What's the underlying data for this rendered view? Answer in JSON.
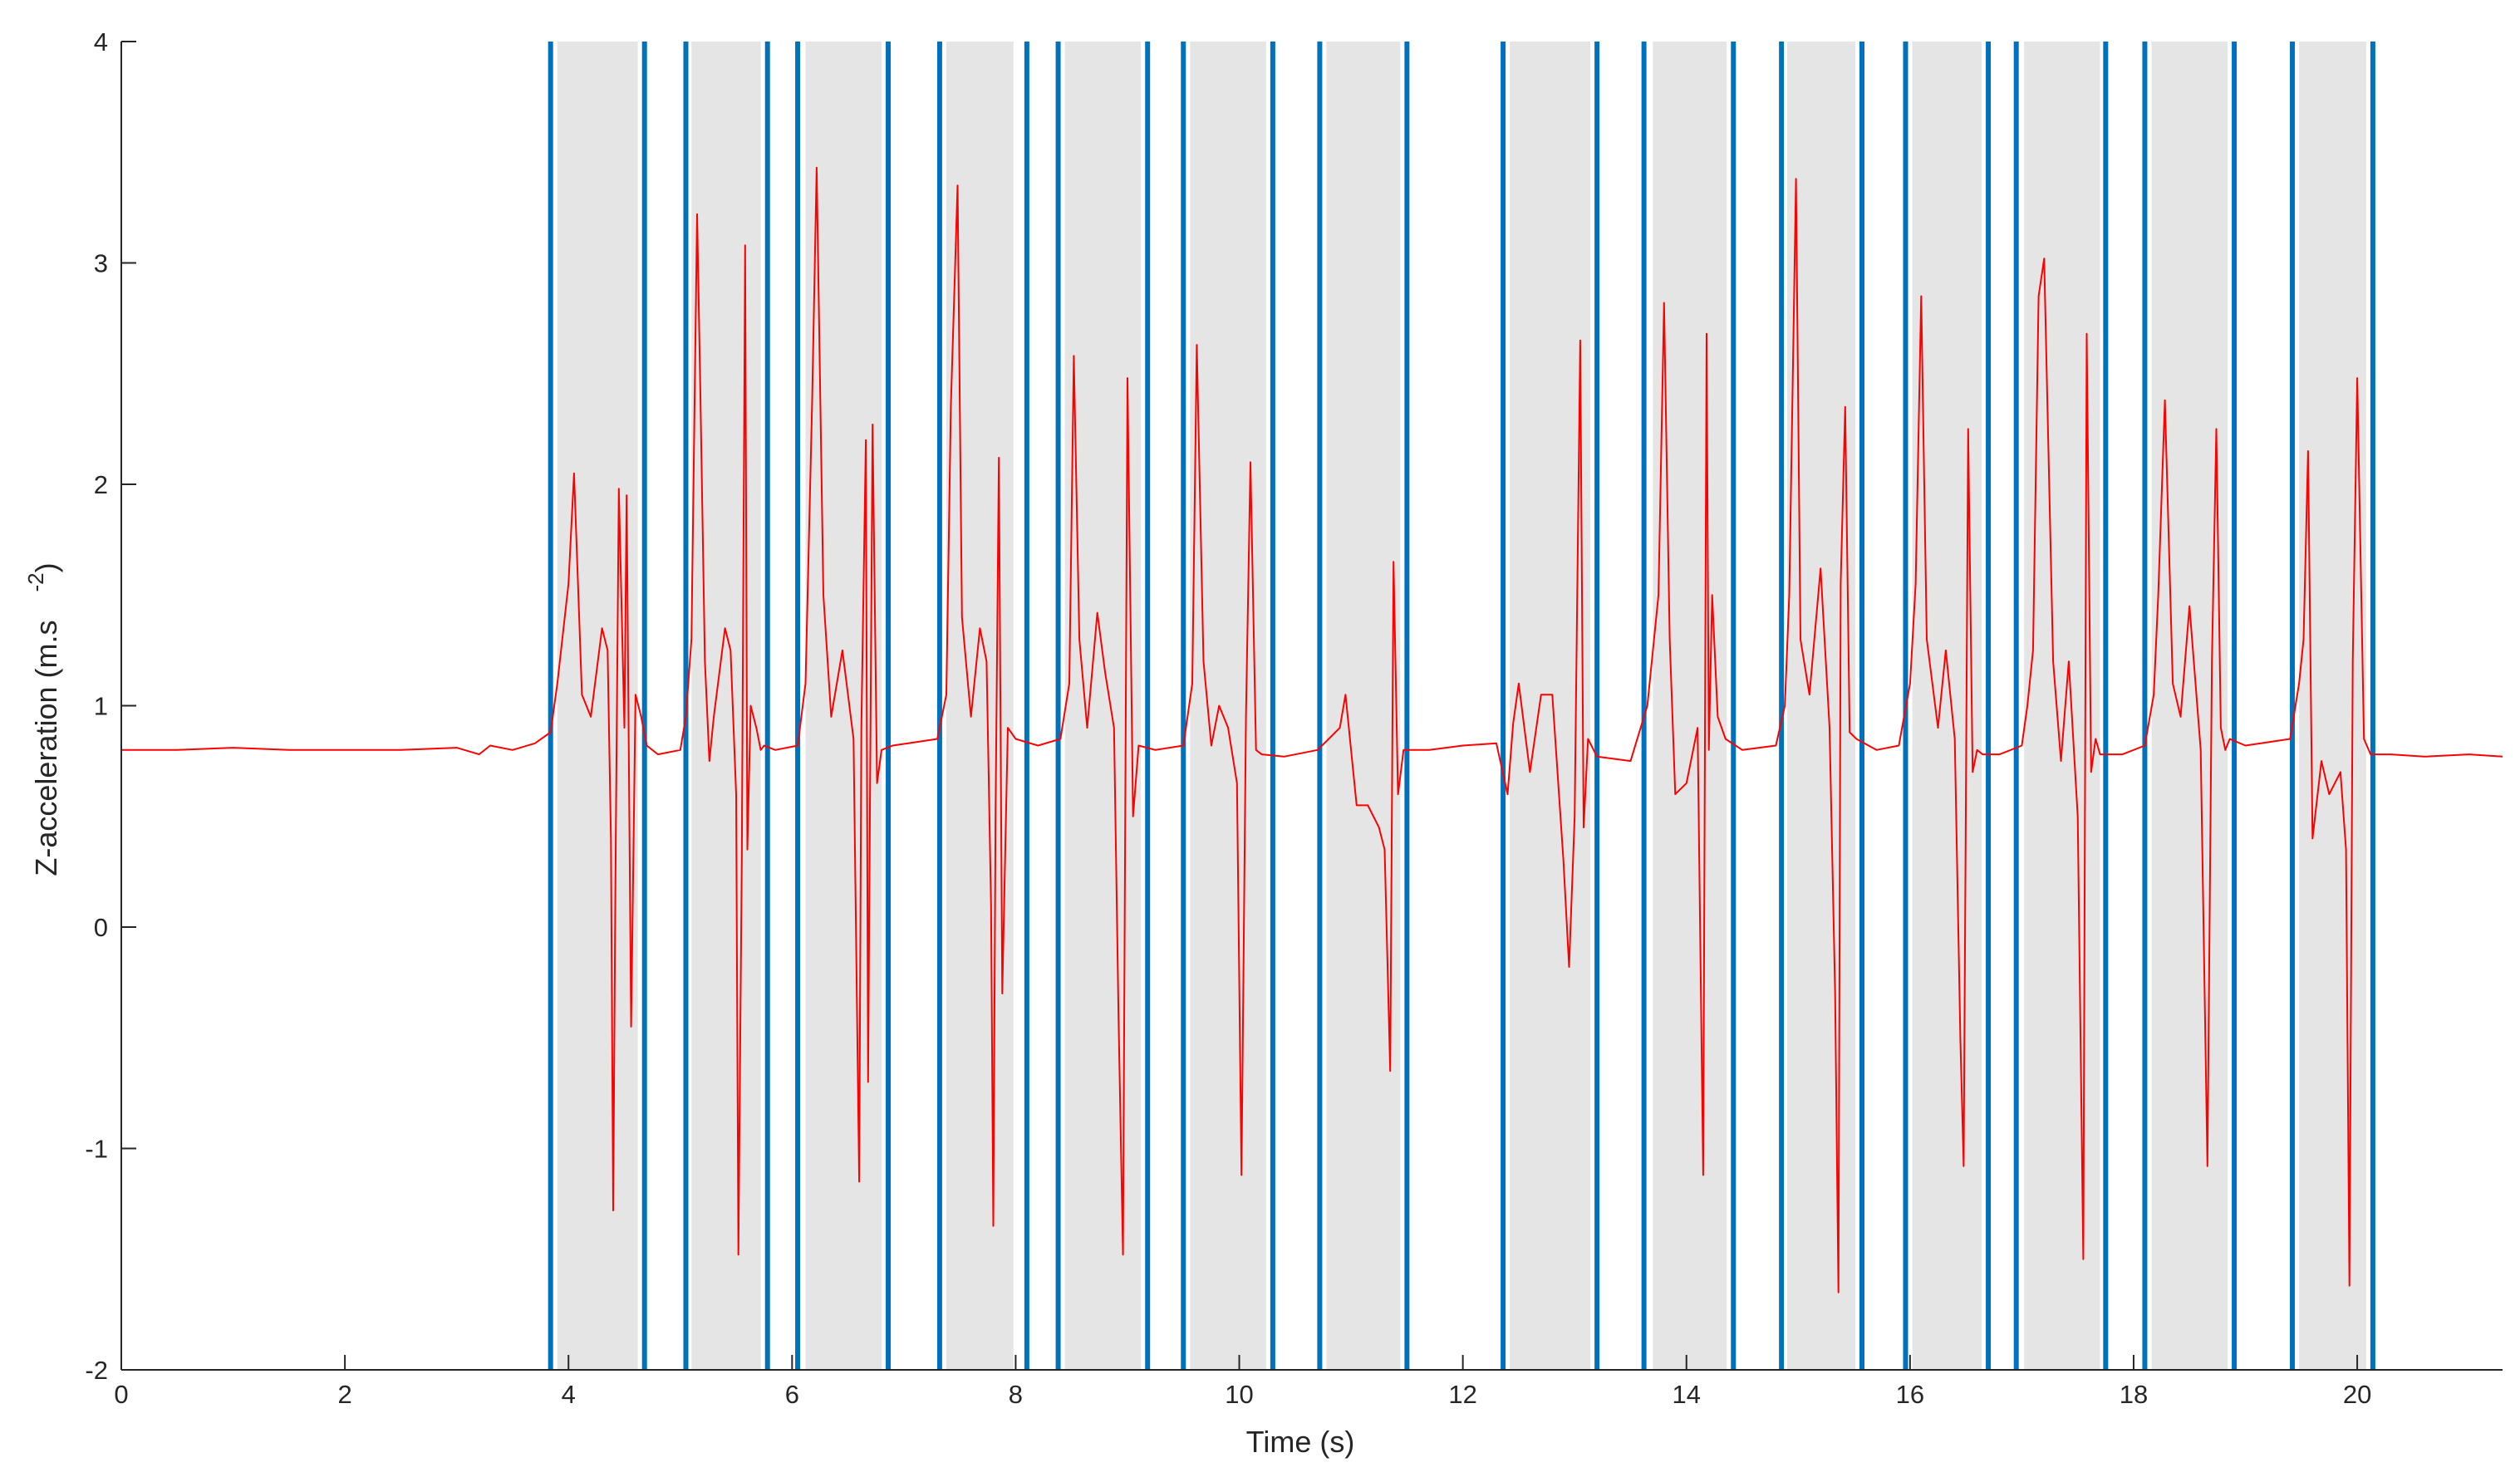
{
  "chart_data": {
    "type": "line",
    "title": "",
    "xlabel": "Time (s)",
    "ylabel": "Z-acceleration (m.s",
    "ylabel_superscript": "-2",
    "ylabel_close": ")",
    "xlim": [
      0,
      21.3
    ],
    "ylim": [
      -2,
      4
    ],
    "xticks": [
      0,
      2,
      4,
      6,
      8,
      10,
      12,
      14,
      16,
      18,
      20
    ],
    "xtick_labels": [
      "0",
      "2",
      "4",
      "6",
      "8",
      "10",
      "12",
      "14",
      "16",
      "18",
      "20"
    ],
    "yticks": [
      -2,
      -1,
      0,
      1,
      2,
      3,
      4
    ],
    "ytick_labels": [
      "-2",
      "-1",
      "0",
      "1",
      "2",
      "3",
      "4"
    ],
    "grid": false,
    "colors": {
      "signal": "#ff0000",
      "boundary": "#0072bd",
      "band": "#e5e5e5",
      "axis": "#262626"
    },
    "boundaries": [
      3.84,
      4.68,
      5.05,
      5.78,
      6.05,
      6.86,
      7.32,
      8.1,
      8.38,
      9.18,
      9.5,
      10.3,
      10.72,
      11.5,
      12.36,
      13.2,
      13.62,
      14.42,
      14.85,
      15.57,
      15.96,
      16.7,
      16.95,
      17.75,
      18.1,
      18.9,
      19.42,
      20.14
    ],
    "bands": [
      [
        3.9,
        4.62
      ],
      [
        5.1,
        5.72
      ],
      [
        6.12,
        6.8
      ],
      [
        7.38,
        7.98
      ],
      [
        8.44,
        9.12
      ],
      [
        9.56,
        10.24
      ],
      [
        10.78,
        11.44
      ],
      [
        12.42,
        13.14
      ],
      [
        13.7,
        14.36
      ],
      [
        14.9,
        15.51
      ],
      [
        16.02,
        16.64
      ],
      [
        17.02,
        17.7
      ],
      [
        18.16,
        18.84
      ],
      [
        19.48,
        20.08
      ]
    ],
    "series": [
      {
        "x": [
          0,
          0.5,
          1,
          1.5,
          2,
          2.5,
          3,
          3.2,
          3.3,
          3.5,
          3.7,
          3.84,
          3.9,
          4.0,
          4.05,
          4.12,
          4.2,
          4.3,
          4.35,
          4.38,
          4.4,
          4.42,
          4.45,
          4.5,
          4.52,
          4.56,
          4.6,
          4.65,
          4.7,
          4.8,
          5.0,
          5.05,
          5.1,
          5.15,
          5.18,
          5.22,
          5.26,
          5.3,
          5.4,
          5.45,
          5.5,
          5.52,
          5.55,
          5.58,
          5.6,
          5.63,
          5.68,
          5.72,
          5.75,
          5.85,
          6.05,
          6.12,
          6.18,
          6.22,
          6.28,
          6.35,
          6.45,
          6.55,
          6.6,
          6.62,
          6.66,
          6.68,
          6.72,
          6.76,
          6.8,
          6.9,
          7.3,
          7.38,
          7.42,
          7.48,
          7.52,
          7.6,
          7.68,
          7.74,
          7.78,
          7.8,
          7.82,
          7.85,
          7.88,
          7.93,
          8.0,
          8.2,
          8.4,
          8.48,
          8.52,
          8.57,
          8.64,
          8.73,
          8.8,
          8.88,
          8.92,
          8.96,
          9.0,
          9.05,
          9.1,
          9.25,
          9.5,
          9.58,
          9.62,
          9.68,
          9.75,
          9.82,
          9.9,
          9.98,
          10.02,
          10.06,
          10.1,
          10.15,
          10.2,
          10.4,
          10.7,
          10.8,
          10.9,
          10.95,
          11.0,
          11.05,
          11.15,
          11.25,
          11.3,
          11.35,
          11.38,
          11.42,
          11.47,
          11.7,
          12.0,
          12.3,
          12.4,
          12.45,
          12.5,
          12.6,
          12.7,
          12.8,
          12.9,
          12.95,
          13.0,
          13.05,
          13.08,
          13.12,
          13.2,
          13.5,
          13.65,
          13.75,
          13.8,
          13.85,
          13.9,
          14.0,
          14.1,
          14.15,
          14.18,
          14.2,
          14.23,
          14.28,
          14.35,
          14.5,
          14.8,
          14.88,
          14.92,
          14.98,
          15.02,
          15.1,
          15.2,
          15.28,
          15.33,
          15.36,
          15.38,
          15.42,
          15.46,
          15.52,
          15.7,
          15.9,
          16.0,
          16.05,
          16.1,
          16.15,
          16.25,
          16.32,
          16.4,
          16.45,
          16.48,
          16.52,
          16.56,
          16.6,
          16.65,
          16.8,
          17.0,
          17.05,
          17.1,
          17.15,
          17.2,
          17.28,
          17.35,
          17.42,
          17.5,
          17.55,
          17.58,
          17.62,
          17.66,
          17.7,
          17.9,
          18.1,
          18.18,
          18.22,
          18.28,
          18.35,
          18.42,
          18.5,
          18.6,
          18.66,
          18.7,
          18.74,
          18.78,
          18.82,
          18.86,
          19.0,
          19.4,
          19.48,
          19.52,
          19.56,
          19.6,
          19.68,
          19.75,
          19.85,
          19.9,
          19.93,
          19.96,
          20.0,
          20.06,
          20.12,
          20.3,
          20.6,
          21.0,
          21.3
        ],
        "values": [
          0.8,
          0.8,
          0.81,
          0.8,
          0.8,
          0.8,
          0.81,
          0.78,
          0.82,
          0.8,
          0.83,
          0.88,
          1.1,
          1.55,
          2.05,
          1.05,
          0.95,
          1.35,
          1.25,
          0.4,
          -1.28,
          0.2,
          1.98,
          0.9,
          1.95,
          -0.45,
          1.05,
          0.95,
          0.82,
          0.78,
          0.8,
          0.95,
          1.3,
          3.22,
          2.4,
          1.2,
          0.75,
          0.95,
          1.35,
          1.25,
          0.6,
          -1.48,
          0.3,
          3.08,
          0.35,
          1.0,
          0.9,
          0.8,
          0.82,
          0.8,
          0.82,
          1.1,
          2.38,
          3.43,
          1.5,
          0.95,
          1.25,
          0.85,
          -1.15,
          0.9,
          2.2,
          -0.7,
          2.27,
          0.65,
          0.8,
          0.82,
          0.85,
          1.05,
          2.35,
          3.35,
          1.4,
          0.95,
          1.35,
          1.2,
          0.1,
          -1.35,
          0.5,
          2.12,
          -0.3,
          0.9,
          0.85,
          0.82,
          0.85,
          1.1,
          2.58,
          1.3,
          0.9,
          1.42,
          1.15,
          0.9,
          -0.4,
          -1.48,
          2.48,
          0.5,
          0.82,
          0.8,
          0.82,
          1.1,
          2.63,
          1.2,
          0.82,
          1.0,
          0.9,
          0.65,
          -1.12,
          0.95,
          2.1,
          0.8,
          0.78,
          0.77,
          0.8,
          0.85,
          0.9,
          1.05,
          0.8,
          0.55,
          0.55,
          0.45,
          0.35,
          -0.65,
          1.65,
          0.6,
          0.8,
          0.8,
          0.82,
          0.83,
          0.6,
          0.92,
          1.1,
          0.7,
          1.05,
          1.05,
          0.3,
          -0.18,
          0.5,
          2.65,
          0.45,
          0.85,
          0.77,
          0.75,
          1.0,
          1.5,
          2.82,
          1.3,
          0.6,
          0.65,
          0.9,
          -1.12,
          2.68,
          0.8,
          1.5,
          0.95,
          0.85,
          0.8,
          0.82,
          1.0,
          1.5,
          3.38,
          1.3,
          1.05,
          1.62,
          0.9,
          -0.3,
          -1.65,
          1.55,
          2.35,
          0.88,
          0.85,
          0.8,
          0.82,
          1.1,
          1.55,
          2.85,
          1.3,
          0.9,
          1.25,
          0.85,
          -0.5,
          -1.08,
          2.25,
          0.7,
          0.8,
          0.78,
          0.78,
          0.82,
          1.0,
          1.25,
          2.85,
          3.02,
          1.2,
          0.75,
          1.2,
          0.5,
          -1.5,
          2.68,
          0.7,
          0.85,
          0.78,
          0.78,
          0.82,
          1.05,
          1.5,
          2.38,
          1.1,
          0.95,
          1.45,
          0.8,
          -1.08,
          1.2,
          2.25,
          0.9,
          0.8,
          0.85,
          0.82,
          0.85,
          1.1,
          1.3,
          2.15,
          0.4,
          0.75,
          0.6,
          0.7,
          0.35,
          -1.62,
          1.2,
          2.48,
          0.85,
          0.78,
          0.78,
          0.77,
          0.78,
          0.77
        ]
      }
    ]
  }
}
